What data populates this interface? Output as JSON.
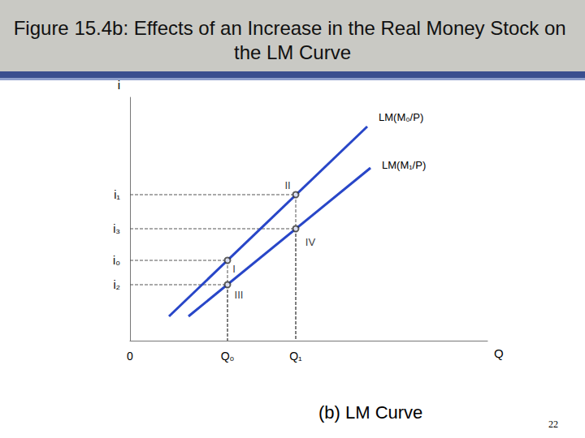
{
  "chart_data": {
    "type": "line",
    "title": "Figure 15.4b: Effects of an Increase in the Real Money Stock on the LM Curve",
    "subtitle": "(b) LM Curve",
    "footer": "22",
    "x_label": "Q",
    "y_label": "i",
    "xlim": [
      0,
      110
    ],
    "ylim": [
      0,
      100
    ],
    "xticks": [
      0,
      {
        "value": 30,
        "label": "Q₀"
      },
      {
        "value": 51,
        "label": "Q₁"
      }
    ],
    "yticks": [
      {
        "value": 23,
        "label": "i₂"
      },
      {
        "value": 33,
        "label": "i₀"
      },
      {
        "value": 46,
        "label": "i₃"
      },
      {
        "value": 60,
        "label": "i₁"
      }
    ],
    "grid": false,
    "series": [
      {
        "name": "LM(M₀/P)",
        "color": "#2846c8",
        "x": [
          12,
          73
        ],
        "values": [
          10,
          88
        ]
      },
      {
        "name": "LM(M₁/P)",
        "color": "#2846c8",
        "x": [
          18,
          74
        ],
        "values": [
          10,
          71
        ]
      }
    ],
    "points": {
      "marker": "circle",
      "color": "#333333",
      "labels": [
        "I",
        "II",
        "III",
        "IV"
      ],
      "x": [
        30,
        51,
        30,
        51
      ],
      "values": [
        33,
        60,
        23,
        46
      ]
    }
  }
}
